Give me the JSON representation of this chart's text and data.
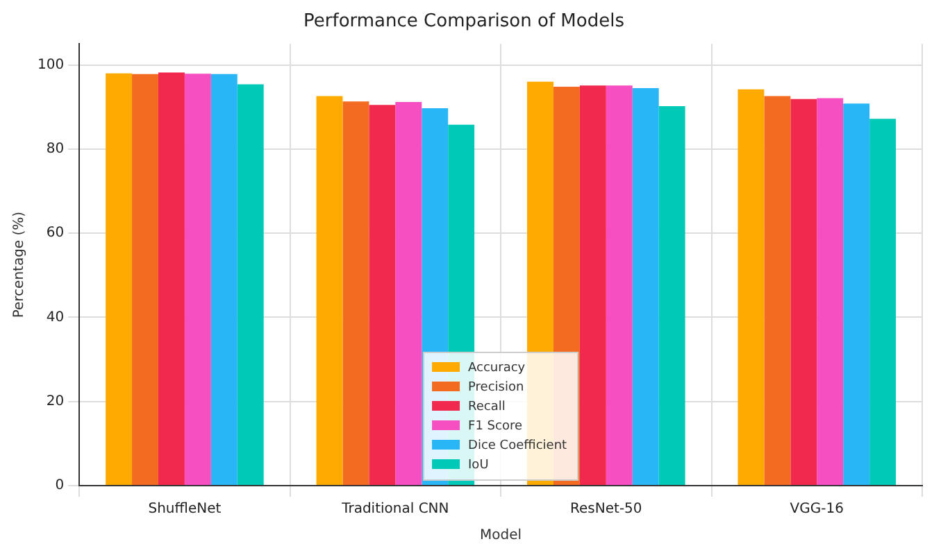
{
  "chart_data": {
    "type": "bar",
    "title": "Performance Comparison of Models",
    "xlabel": "Model",
    "ylabel": "Percentage (%)",
    "categories": [
      "ShuffleNet",
      "Traditional CNN",
      "ResNet-50",
      "VGG-16"
    ],
    "series": [
      {
        "name": "Accuracy",
        "color": "#ffaa00",
        "values": [
          98,
          92.6,
          96,
          94.2
        ]
      },
      {
        "name": "Precision",
        "color": "#f26b21",
        "values": [
          97.8,
          91.3,
          94.8,
          92.6
        ]
      },
      {
        "name": "Recall",
        "color": "#f2294f",
        "values": [
          98.2,
          90.5,
          95.1,
          91.9
        ]
      },
      {
        "name": "F1 Score",
        "color": "#f54fc2",
        "values": [
          97.9,
          91.2,
          95.1,
          92.1
        ]
      },
      {
        "name": "Dice Coefficient",
        "color": "#29b6f6",
        "values": [
          97.8,
          89.7,
          94.5,
          90.8
        ]
      },
      {
        "name": "IoU",
        "color": "#00c9b7",
        "values": [
          95.4,
          85.8,
          90.2,
          87.2
        ]
      }
    ],
    "ylim": [
      0,
      105
    ],
    "yticks": [
      0,
      20,
      40,
      60,
      80,
      100
    ],
    "grid": true,
    "legend": "bottom"
  }
}
